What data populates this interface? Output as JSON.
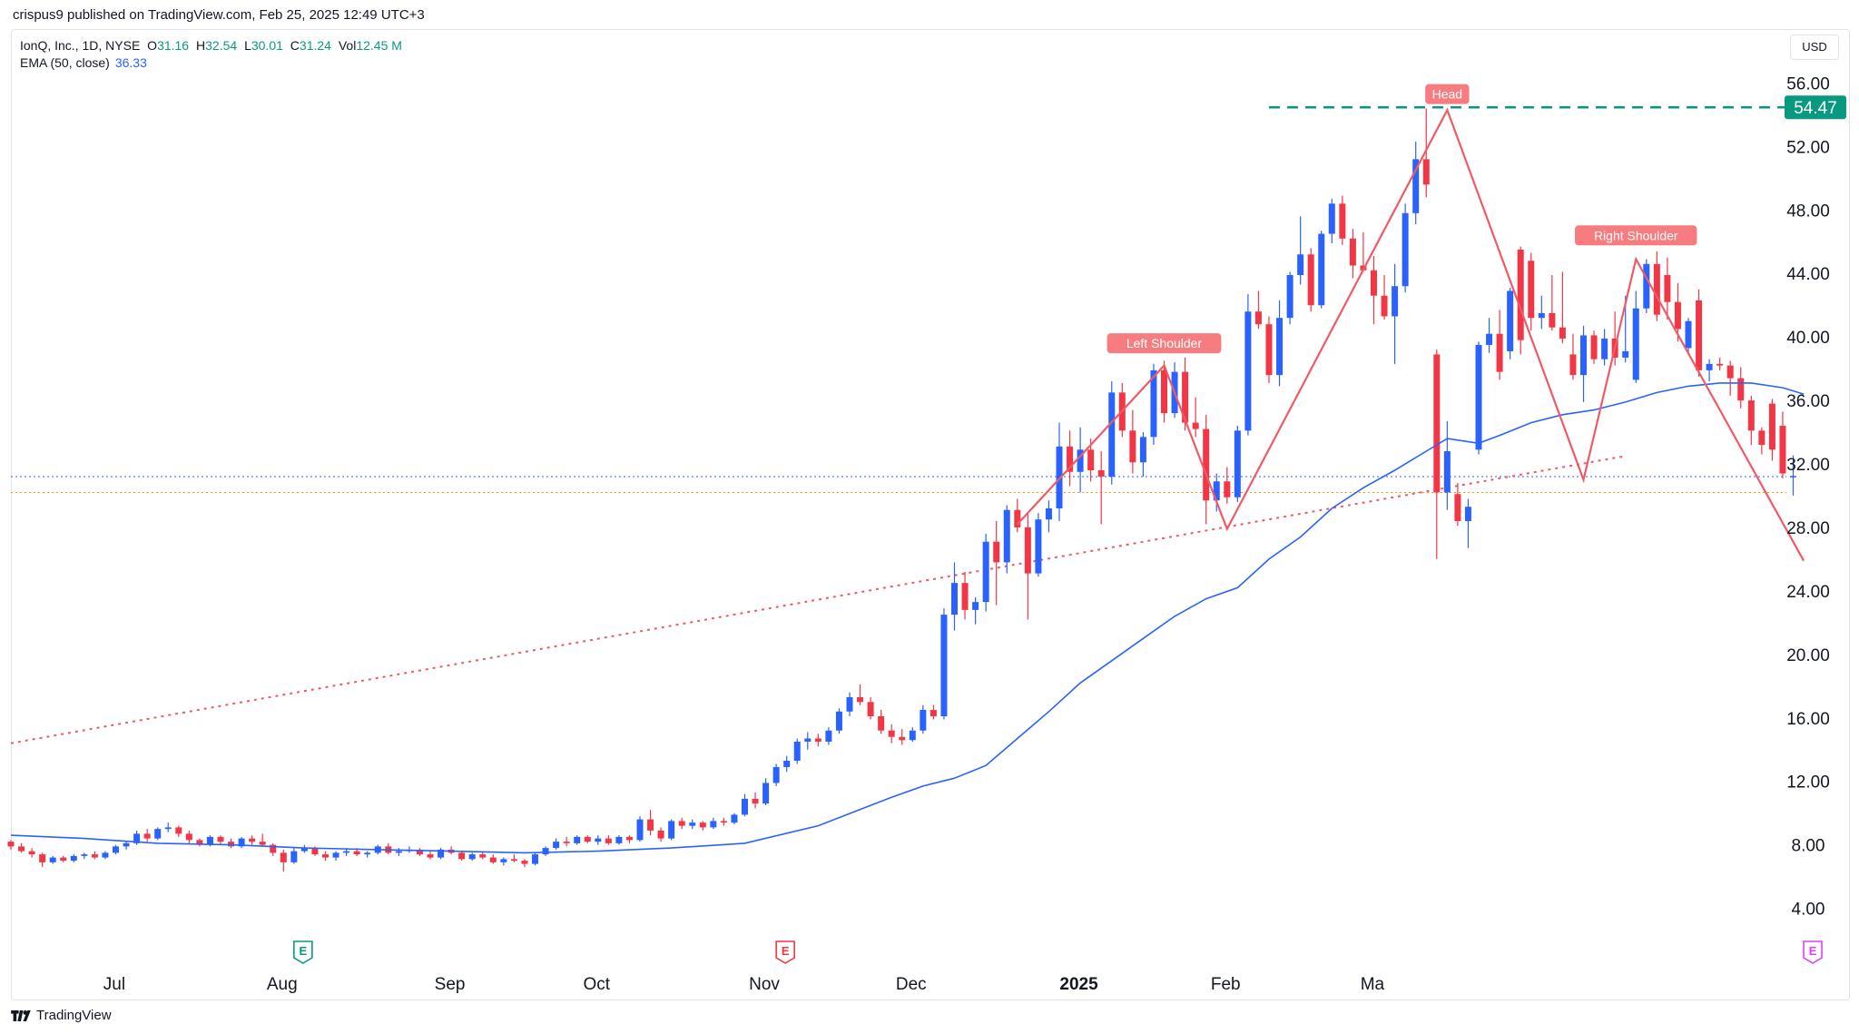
{
  "header": {
    "published": "crispus9 published on TradingView.com, Feb 25, 2025 12:49 UTC+3"
  },
  "legend": {
    "symbol": "IonQ, Inc., 1D, NYSE",
    "o_label": "O",
    "o": "31.16",
    "h_label": "H",
    "h": "32.54",
    "l_label": "L",
    "l": "30.01",
    "c_label": "C",
    "c": "31.24",
    "vol_label": "Vol",
    "vol": "12.45 M",
    "ema_label": "EMA (50, close)",
    "ema": "36.33"
  },
  "currency_button": "USD",
  "footer": {
    "brand": "TradingView"
  },
  "colors": {
    "up": "#2962ff",
    "down": "#f23645",
    "ema": "#2962ff",
    "pattern": "#f05a66",
    "trendline": "#f05a66",
    "target_line": "#089981",
    "last_price_line": "#2962ff",
    "cur_price_line": "#ff9800",
    "label_bg": "#f77c80"
  },
  "chart_data": {
    "type": "candlestick",
    "y_axis": {
      "ticks": [
        "4.00",
        "8.00",
        "12.00",
        "16.00",
        "20.00",
        "24.00",
        "28.00",
        "32.00",
        "36.00",
        "40.00",
        "44.00",
        "48.00",
        "52.00",
        "56.00"
      ],
      "range": [
        0.6,
        59.4
      ]
    },
    "x_axis": {
      "ticks": [
        "Jul",
        "Aug",
        "Sep",
        "Oct",
        "Nov",
        "Dec",
        "2025",
        "Feb",
        "Ma"
      ]
    },
    "target_price": "54.47",
    "reference_lines": [
      31.2,
      30.2
    ],
    "annotations": [
      "Left Shoulder",
      "Head",
      "Right Shoulder"
    ],
    "event_markers": [
      "E",
      "E",
      "E"
    ],
    "candles": [
      [
        8.2,
        8.3,
        7.7,
        7.9
      ],
      [
        7.9,
        8.1,
        7.5,
        7.6
      ],
      [
        7.6,
        7.8,
        7.2,
        7.4
      ],
      [
        7.4,
        7.5,
        6.6,
        6.9
      ],
      [
        6.9,
        7.3,
        6.8,
        7.2
      ],
      [
        7.2,
        7.3,
        6.9,
        7.0
      ],
      [
        7.0,
        7.4,
        6.9,
        7.3
      ],
      [
        7.3,
        7.5,
        7.1,
        7.4
      ],
      [
        7.4,
        7.6,
        7.1,
        7.2
      ],
      [
        7.2,
        7.6,
        7.1,
        7.5
      ],
      [
        7.5,
        8.0,
        7.4,
        7.9
      ],
      [
        7.9,
        8.2,
        7.7,
        8.1
      ],
      [
        8.1,
        8.9,
        8.0,
        8.7
      ],
      [
        8.7,
        9.0,
        8.2,
        8.4
      ],
      [
        8.4,
        9.1,
        8.3,
        9.0
      ],
      [
        9.0,
        9.4,
        8.8,
        9.1
      ],
      [
        9.1,
        9.2,
        8.5,
        8.7
      ],
      [
        8.7,
        8.9,
        8.1,
        8.3
      ],
      [
        8.3,
        8.4,
        7.9,
        8.0
      ],
      [
        8.0,
        8.6,
        7.9,
        8.5
      ],
      [
        8.5,
        8.6,
        8.0,
        8.2
      ],
      [
        8.2,
        8.4,
        7.8,
        7.9
      ],
      [
        7.9,
        8.5,
        7.8,
        8.4
      ],
      [
        8.4,
        8.6,
        8.0,
        8.2
      ],
      [
        8.2,
        8.7,
        7.9,
        8.0
      ],
      [
        8.0,
        8.1,
        7.3,
        7.5
      ],
      [
        7.5,
        7.7,
        6.3,
        6.9
      ],
      [
        6.9,
        7.8,
        6.8,
        7.6
      ],
      [
        7.6,
        8.0,
        7.5,
        7.8
      ],
      [
        7.8,
        7.9,
        7.3,
        7.4
      ],
      [
        7.4,
        7.6,
        7.0,
        7.2
      ],
      [
        7.2,
        7.6,
        7.0,
        7.5
      ],
      [
        7.5,
        7.8,
        7.3,
        7.6
      ],
      [
        7.6,
        7.8,
        7.3,
        7.4
      ],
      [
        7.4,
        7.6,
        7.2,
        7.5
      ],
      [
        7.5,
        8.0,
        7.4,
        7.9
      ],
      [
        7.9,
        8.1,
        7.4,
        7.5
      ],
      [
        7.5,
        7.8,
        7.3,
        7.6
      ],
      [
        7.6,
        7.9,
        7.5,
        7.7
      ],
      [
        7.7,
        7.8,
        7.3,
        7.4
      ],
      [
        7.4,
        7.6,
        7.1,
        7.2
      ],
      [
        7.2,
        7.8,
        7.1,
        7.7
      ],
      [
        7.7,
        7.9,
        7.4,
        7.5
      ],
      [
        7.5,
        7.6,
        7.0,
        7.1
      ],
      [
        7.1,
        7.5,
        7.0,
        7.4
      ],
      [
        7.4,
        7.6,
        7.1,
        7.2
      ],
      [
        7.2,
        7.4,
        6.8,
        6.9
      ],
      [
        6.9,
        7.2,
        6.7,
        7.1
      ],
      [
        7.1,
        7.4,
        6.9,
        7.0
      ],
      [
        7.0,
        7.1,
        6.6,
        6.8
      ],
      [
        6.8,
        7.5,
        6.7,
        7.4
      ],
      [
        7.4,
        7.9,
        7.3,
        7.8
      ],
      [
        7.8,
        8.4,
        7.7,
        8.2
      ],
      [
        8.2,
        8.5,
        7.9,
        8.1
      ],
      [
        8.1,
        8.6,
        8.0,
        8.5
      ],
      [
        8.5,
        8.6,
        8.1,
        8.2
      ],
      [
        8.2,
        8.6,
        8.0,
        8.4
      ],
      [
        8.4,
        8.6,
        8.0,
        8.1
      ],
      [
        8.1,
        8.6,
        8.0,
        8.5
      ],
      [
        8.5,
        8.6,
        8.1,
        8.3
      ],
      [
        8.3,
        9.8,
        8.2,
        9.6
      ],
      [
        9.6,
        10.2,
        8.6,
        8.9
      ],
      [
        8.9,
        9.1,
        8.2,
        8.4
      ],
      [
        8.4,
        9.6,
        8.3,
        9.5
      ],
      [
        9.5,
        9.7,
        9.0,
        9.2
      ],
      [
        9.2,
        9.6,
        9.0,
        9.4
      ],
      [
        9.4,
        9.5,
        8.9,
        9.1
      ],
      [
        9.1,
        9.7,
        9.0,
        9.5
      ],
      [
        9.5,
        9.7,
        9.2,
        9.4
      ],
      [
        9.4,
        10.0,
        9.3,
        9.9
      ],
      [
        9.9,
        11.2,
        9.8,
        10.9
      ],
      [
        10.9,
        11.3,
        10.3,
        10.6
      ],
      [
        10.6,
        12.2,
        10.5,
        11.9
      ],
      [
        11.9,
        13.1,
        11.7,
        12.9
      ],
      [
        12.9,
        13.6,
        12.6,
        13.3
      ],
      [
        13.3,
        14.7,
        13.1,
        14.5
      ],
      [
        14.5,
        15.1,
        14.0,
        14.7
      ],
      [
        14.7,
        15.0,
        14.2,
        14.5
      ],
      [
        14.5,
        15.4,
        14.3,
        15.2
      ],
      [
        15.2,
        16.6,
        15.0,
        16.4
      ],
      [
        16.4,
        17.6,
        16.1,
        17.3
      ],
      [
        17.3,
        18.1,
        16.8,
        17.0
      ],
      [
        17.0,
        17.3,
        15.9,
        16.1
      ],
      [
        16.1,
        16.5,
        15.0,
        15.2
      ],
      [
        15.2,
        15.6,
        14.4,
        14.8
      ],
      [
        14.8,
        15.3,
        14.3,
        14.6
      ],
      [
        14.6,
        15.4,
        14.5,
        15.2
      ],
      [
        15.2,
        16.8,
        15.0,
        16.5
      ],
      [
        16.5,
        16.8,
        15.9,
        16.1
      ],
      [
        16.1,
        22.9,
        15.9,
        22.5
      ],
      [
        22.5,
        25.8,
        21.5,
        24.5
      ],
      [
        24.5,
        25.2,
        22.2,
        22.8
      ],
      [
        22.8,
        23.6,
        21.9,
        23.3
      ],
      [
        23.3,
        27.6,
        22.7,
        27.1
      ],
      [
        27.1,
        28.4,
        23.1,
        25.8
      ],
      [
        25.8,
        29.4,
        25.1,
        29.1
      ],
      [
        29.1,
        29.8,
        27.7,
        28.0
      ],
      [
        28.0,
        28.9,
        22.2,
        25.1
      ],
      [
        25.1,
        28.9,
        24.9,
        28.5
      ],
      [
        28.5,
        29.7,
        27.7,
        29.2
      ],
      [
        29.2,
        34.6,
        28.4,
        33.1
      ],
      [
        33.1,
        34.1,
        30.6,
        31.5
      ],
      [
        31.5,
        34.3,
        30.2,
        32.9
      ],
      [
        32.9,
        33.6,
        30.9,
        31.6
      ],
      [
        31.6,
        32.8,
        28.2,
        31.2
      ],
      [
        31.2,
        37.2,
        30.7,
        36.5
      ],
      [
        36.5,
        37.1,
        33.7,
        34.1
      ],
      [
        34.1,
        35.4,
        31.4,
        32.1
      ],
      [
        32.1,
        34.0,
        31.2,
        33.7
      ],
      [
        33.7,
        38.3,
        33.2,
        37.9
      ],
      [
        37.9,
        38.5,
        34.6,
        35.2
      ],
      [
        35.2,
        38.4,
        34.9,
        37.8
      ],
      [
        37.8,
        38.7,
        34.1,
        34.6
      ],
      [
        34.6,
        36.2,
        33.7,
        34.2
      ],
      [
        34.2,
        35.1,
        28.2,
        29.7
      ],
      [
        29.7,
        31.4,
        29.0,
        30.9
      ],
      [
        30.9,
        31.8,
        29.5,
        29.9
      ],
      [
        29.9,
        34.4,
        29.6,
        34.1
      ],
      [
        34.1,
        42.7,
        33.8,
        41.6
      ],
      [
        41.6,
        42.9,
        40.5,
        40.8
      ],
      [
        40.8,
        41.3,
        37.1,
        37.6
      ],
      [
        37.6,
        42.3,
        36.9,
        41.2
      ],
      [
        41.2,
        44.1,
        40.8,
        43.9
      ],
      [
        43.9,
        47.6,
        43.3,
        45.2
      ],
      [
        45.2,
        45.6,
        41.6,
        42.0
      ],
      [
        42.0,
        46.7,
        41.8,
        46.5
      ],
      [
        46.5,
        48.7,
        45.9,
        48.4
      ],
      [
        48.4,
        48.9,
        45.8,
        46.2
      ],
      [
        46.2,
        46.8,
        43.7,
        44.5
      ],
      [
        44.5,
        46.6,
        44.1,
        44.2
      ],
      [
        44.2,
        45.1,
        40.8,
        42.6
      ],
      [
        42.6,
        43.9,
        41.1,
        41.3
      ],
      [
        41.3,
        44.6,
        38.3,
        43.2
      ],
      [
        43.2,
        48.4,
        42.8,
        47.8
      ],
      [
        47.8,
        52.3,
        47.1,
        51.2
      ],
      [
        51.2,
        54.4,
        48.8,
        49.6
      ],
      [
        38.9,
        39.2,
        26.0,
        30.2
      ],
      [
        30.2,
        34.7,
        29.1,
        32.8
      ],
      [
        30.1,
        30.8,
        28.1,
        28.4
      ],
      [
        28.4,
        29.8,
        26.7,
        29.3
      ],
      [
        32.9,
        39.7,
        32.6,
        39.5
      ],
      [
        39.5,
        41.2,
        39.0,
        40.2
      ],
      [
        40.2,
        41.7,
        37.3,
        37.8
      ],
      [
        39.1,
        43.1,
        38.6,
        42.9
      ],
      [
        45.5,
        45.7,
        38.9,
        39.8
      ],
      [
        44.8,
        45.3,
        40.4,
        41.2
      ],
      [
        41.2,
        42.6,
        40.5,
        41.5
      ],
      [
        41.5,
        43.9,
        40.4,
        40.6
      ],
      [
        40.6,
        44.1,
        39.6,
        39.9
      ],
      [
        38.9,
        40.2,
        37.3,
        37.6
      ],
      [
        37.6,
        40.7,
        35.9,
        40.1
      ],
      [
        40.1,
        40.4,
        38.3,
        38.6
      ],
      [
        38.6,
        40.5,
        38.2,
        39.9
      ],
      [
        39.9,
        41.6,
        38.2,
        38.7
      ],
      [
        38.7,
        42.6,
        38.4,
        39.1
      ],
      [
        37.3,
        42.9,
        37.1,
        41.8
      ],
      [
        41.8,
        44.9,
        41.5,
        44.6
      ],
      [
        44.6,
        45.4,
        41.0,
        41.4
      ],
      [
        43.9,
        45.0,
        41.1,
        42.2
      ],
      [
        42.2,
        43.4,
        39.7,
        40.5
      ],
      [
        39.3,
        41.2,
        38.9,
        41.0
      ],
      [
        42.3,
        43.0,
        37.5,
        37.9
      ],
      [
        37.9,
        38.6,
        37.2,
        38.3
      ],
      [
        38.3,
        38.7,
        37.9,
        38.2
      ],
      [
        38.2,
        38.5,
        36.3,
        37.4
      ],
      [
        37.4,
        38.1,
        35.5,
        36.0
      ],
      [
        36.0,
        36.3,
        33.2,
        34.1
      ],
      [
        34.1,
        34.3,
        32.6,
        33.2
      ],
      [
        35.8,
        36.1,
        32.2,
        32.9
      ],
      [
        34.4,
        35.3,
        31.1,
        31.4
      ],
      [
        31.16,
        32.54,
        30.01,
        31.24
      ]
    ],
    "ema50": [
      [
        0,
        8.6
      ],
      [
        7,
        8.4
      ],
      [
        14,
        8.1
      ],
      [
        21,
        8.0
      ],
      [
        28,
        7.8
      ],
      [
        35,
        7.7
      ],
      [
        42,
        7.6
      ],
      [
        49,
        7.5
      ],
      [
        56,
        7.6
      ],
      [
        63,
        7.8
      ],
      [
        70,
        8.1
      ],
      [
        77,
        9.2
      ],
      [
        84,
        11.0
      ],
      [
        87,
        11.7
      ],
      [
        90,
        12.2
      ],
      [
        93,
        13.0
      ],
      [
        96,
        14.7
      ],
      [
        99,
        16.4
      ],
      [
        102,
        18.2
      ],
      [
        105,
        19.6
      ],
      [
        108,
        21.0
      ],
      [
        111,
        22.4
      ],
      [
        114,
        23.5
      ],
      [
        117,
        24.2
      ],
      [
        120,
        26.0
      ],
      [
        123,
        27.4
      ],
      [
        126,
        29.2
      ],
      [
        129,
        30.5
      ],
      [
        132,
        31.6
      ],
      [
        135,
        32.8
      ],
      [
        137,
        33.6
      ],
      [
        140,
        33.3
      ],
      [
        142,
        33.8
      ],
      [
        145,
        34.6
      ],
      [
        148,
        35.1
      ],
      [
        151,
        35.4
      ],
      [
        154,
        35.9
      ],
      [
        157,
        36.5
      ],
      [
        160,
        36.9
      ],
      [
        163,
        37.1
      ],
      [
        166,
        37.1
      ],
      [
        169,
        36.8
      ],
      [
        171,
        36.4
      ]
    ]
  }
}
